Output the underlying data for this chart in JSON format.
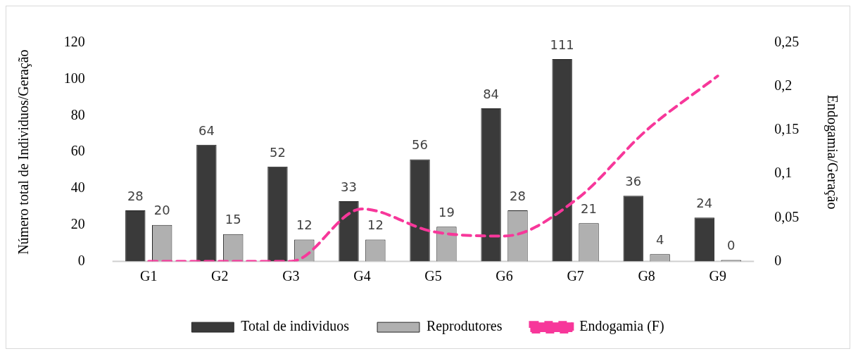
{
  "chart_data": {
    "type": "bar",
    "categories": [
      "G1",
      "G2",
      "G3",
      "G4",
      "G5",
      "G6",
      "G7",
      "G8",
      "G9"
    ],
    "series": [
      {
        "name": "Total de individuos",
        "color": "#3a3a3a",
        "values": [
          28,
          64,
          52,
          33,
          56,
          84,
          111,
          36,
          24
        ],
        "value_labels": [
          "28",
          "64",
          "52",
          "33",
          "56",
          "84",
          "111",
          "36",
          "24"
        ]
      },
      {
        "name": "Reprodutores",
        "color": "#b0b0b0",
        "values": [
          20,
          15,
          12,
          12,
          19,
          28,
          21,
          4,
          0
        ],
        "value_labels": [
          "20",
          "15",
          "12",
          "12",
          "19",
          "28",
          "21",
          "4",
          "0"
        ]
      },
      {
        "name": "Endogamia (F)",
        "type": "line",
        "axis": "y2",
        "color": "#f7379a",
        "line_style": "dashed",
        "marker": "none",
        "values": [
          0,
          0,
          0,
          0.06,
          0.034,
          0.029,
          0.07,
          0.15,
          0.212
        ]
      }
    ],
    "ylabel": "Número total de Individuos/Geração",
    "y2label": "Endogamia/Geração",
    "ylim": [
      0,
      120
    ],
    "yticks": [
      0,
      20,
      40,
      60,
      80,
      100,
      120
    ],
    "y2lim": [
      0,
      0.25
    ],
    "y2ticks": [
      0,
      {
        "value": 0.05,
        "label": "0,05"
      },
      {
        "value": 0.1,
        "label": "0,1"
      },
      {
        "value": 0.15,
        "label": "0,15"
      },
      {
        "value": 0.2,
        "label": "0,2"
      },
      {
        "value": 0.25,
        "label": "0,25"
      }
    ],
    "grid": false,
    "legend": "bottom"
  }
}
